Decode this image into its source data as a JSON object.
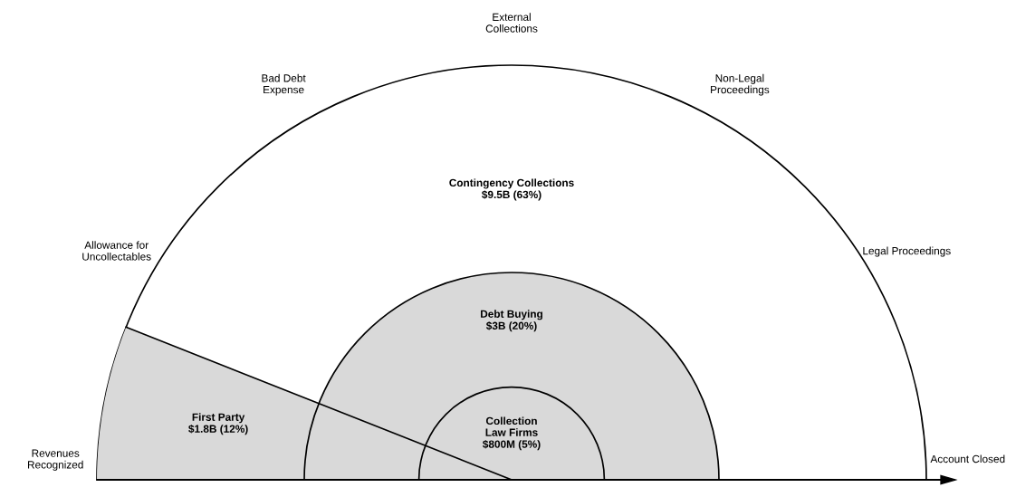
{
  "chart_data": {
    "type": "other",
    "categories": [
      "Contingency Collections",
      "Debt Buying",
      "First Party",
      "Collection\nLaw Firms"
    ],
    "values": [
      63,
      20,
      12,
      5
    ],
    "value_labels": [
      "$9.5B (63%)",
      "$3B (20%)",
      "$1.8B (12%)",
      "$800M (5%)"
    ],
    "colors": [
      "#ffffff",
      "#d9d9d9",
      "#d9d9d9",
      "#d9d9d9"
    ],
    "annotations": [
      "Revenues\nRecognized",
      "Allowance for\nUncollectables",
      "Bad Debt\nExpense",
      "External\nCollections",
      "Non-Legal\nProceedings",
      "Legal Proceedings",
      "Account Closed"
    ]
  }
}
